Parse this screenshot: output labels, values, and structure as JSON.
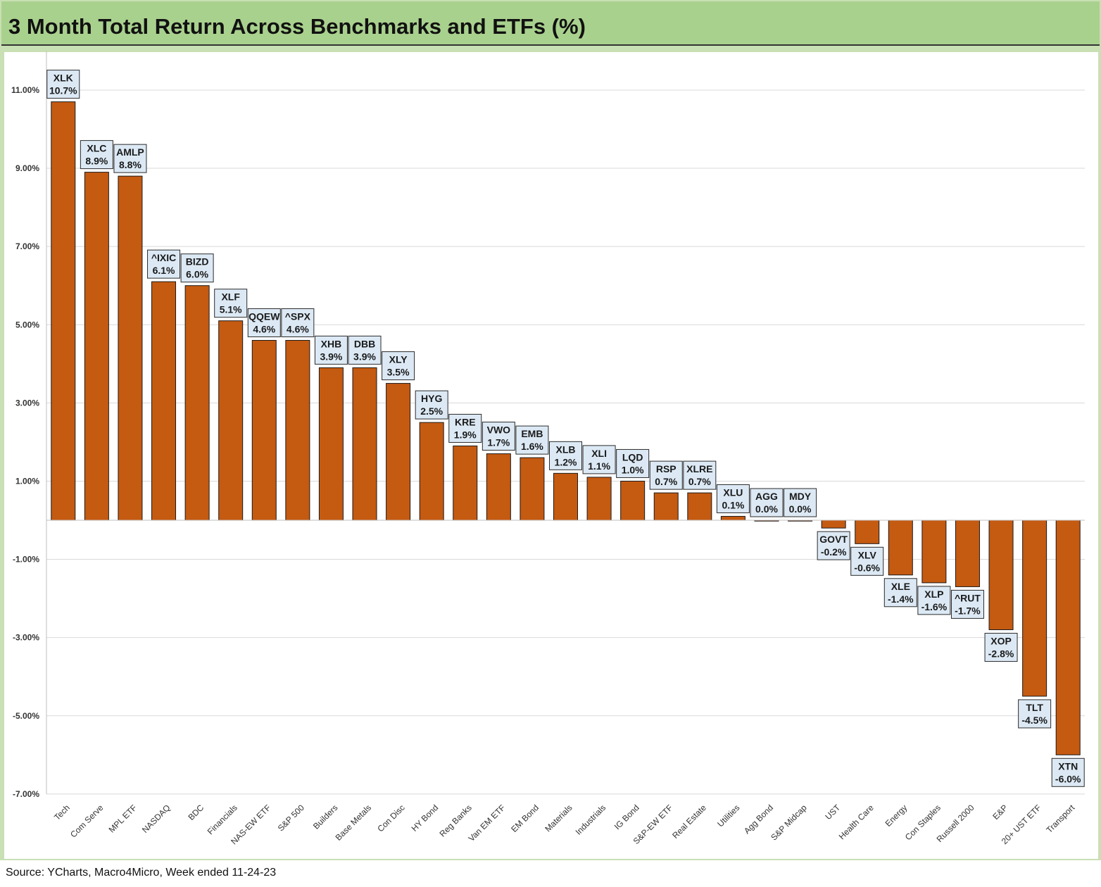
{
  "title": "3 Month Total Return Across Benchmarks and ETFs (%)",
  "source": "Source: YCharts, Macro4Micro, Week ended 11-24-23",
  "colors": {
    "bar": "#c55a11",
    "label_bg": "#dce9f5",
    "frame": "#c8e0b4",
    "title_bg": "#a9d18e"
  },
  "chart_data": {
    "type": "bar",
    "categories": [
      "Tech",
      "Com Serve",
      "MPL ETF",
      "NASDAQ",
      "BDC",
      "Financials",
      "NAS-EW ETF",
      "S&P 500",
      "Builders",
      "Base Metals",
      "Con Disc",
      "HY Bond",
      "Reg Banks",
      "Van EM ETF",
      "EM Bond",
      "Materials",
      "Industrials",
      "IG Bond",
      "S&P-EW ETF",
      "Real Estate",
      "Utilities",
      "Agg Bond",
      "S&P Midcap",
      "UST",
      "Health Care",
      "Energy",
      "Con Staples",
      "Russell 2000",
      "E&P",
      "20+ UST ETF",
      "Transport"
    ],
    "tickers": [
      "XLK",
      "XLC",
      "AMLP",
      "^IXIC",
      "BIZD",
      "XLF",
      "QQEW",
      "^SPX",
      "XHB",
      "DBB",
      "XLY",
      "HYG",
      "KRE",
      "VWO",
      "EMB",
      "XLB",
      "XLI",
      "LQD",
      "RSP",
      "XLRE",
      "XLU",
      "AGG",
      "MDY",
      "GOVT",
      "XLV",
      "XLE",
      "XLP",
      "^RUT",
      "XOP",
      "TLT",
      "XTN"
    ],
    "values": [
      10.7,
      8.9,
      8.8,
      6.1,
      6.0,
      5.1,
      4.6,
      4.6,
      3.9,
      3.9,
      3.5,
      2.5,
      1.9,
      1.7,
      1.6,
      1.2,
      1.1,
      1.0,
      0.7,
      0.7,
      0.1,
      0.0,
      0.0,
      -0.2,
      -0.6,
      -1.4,
      -1.6,
      -1.7,
      -2.8,
      -4.5,
      -6.0
    ],
    "data_labels": [
      "10.7%",
      "8.9%",
      "8.8%",
      "6.1%",
      "6.0%",
      "5.1%",
      "4.6%",
      "4.6%",
      "3.9%",
      "3.9%",
      "3.5%",
      "2.5%",
      "1.9%",
      "1.7%",
      "1.6%",
      "1.2%",
      "1.1%",
      "1.0%",
      "0.7%",
      "0.7%",
      "0.1%",
      "0.0%",
      "0.0%",
      "-0.2%",
      "-0.6%",
      "-1.4%",
      "-1.6%",
      "-1.7%",
      "-2.8%",
      "-4.5%",
      "-6.0%"
    ],
    "yticks": [
      11,
      9,
      7,
      5,
      3,
      1,
      -1,
      -3,
      -5,
      -7
    ],
    "ytick_labels": [
      "11.00%",
      "9.00%",
      "7.00%",
      "5.00%",
      "3.00%",
      "1.00%",
      "-1.00%",
      "-3.00%",
      "-5.00%",
      "-7.00%"
    ],
    "ylim": [
      -7,
      12
    ],
    "grid": true,
    "xlabel": "",
    "ylabel": ""
  }
}
